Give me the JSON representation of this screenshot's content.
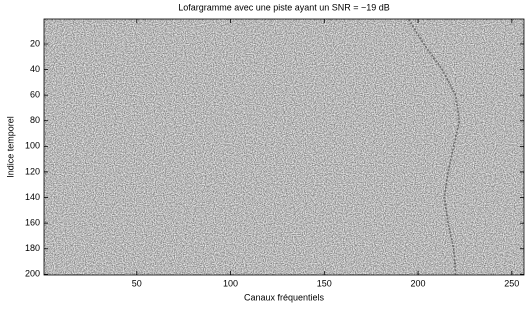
{
  "chart_data": {
    "type": "lofargram",
    "title": "Lofargramme avec une piste ayant un SNR = −19 dB",
    "x_label": "Canaux fréquentiels",
    "y_label": "Indice temporel",
    "xlim": [
      0.5,
      256.5
    ],
    "xticks": [
      50,
      100,
      150,
      200,
      250
    ],
    "ylim": [
      0.5,
      200.5
    ],
    "yticks": [
      20,
      40,
      60,
      80,
      100,
      120,
      140,
      160,
      180,
      200
    ],
    "y_reversed": true,
    "track": {
      "color": "#333333",
      "x": [
        195,
        203,
        213,
        220,
        222,
        219,
        216,
        214,
        216,
        219,
        220
      ],
      "values": [
        1,
        20,
        40,
        60,
        80,
        100,
        120,
        140,
        160,
        180,
        200
      ]
    }
  }
}
